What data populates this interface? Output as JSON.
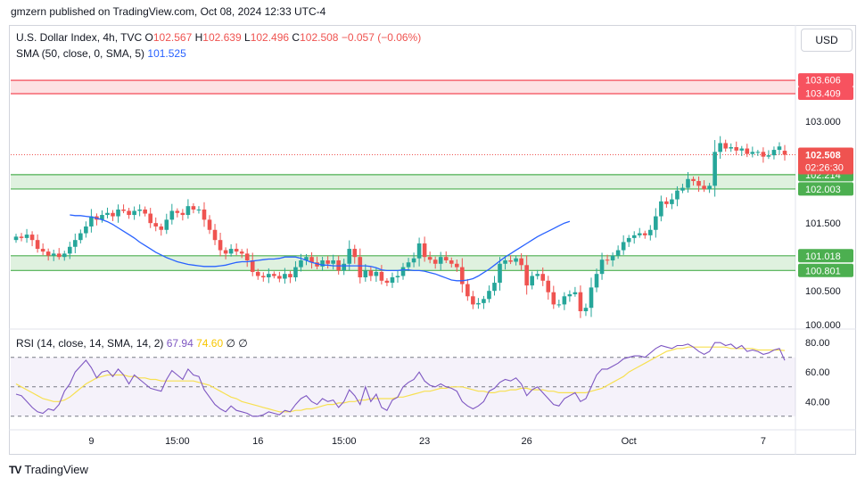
{
  "header": {
    "publisher": "gmzern published on TradingView.com, Oct 08, 2024 12:33 UTC-4"
  },
  "legend": {
    "symbol": "U.S. Dollar Index, 4h, TVC",
    "o_label": "O",
    "o": "102.567",
    "h_label": "H",
    "h": "102.639",
    "l_label": "L",
    "l": "102.496",
    "c_label": "C",
    "c": "102.508",
    "change": "−0.057 (−0.06%)",
    "sma_label": "SMA (50, close, 0, SMA, 5)",
    "sma_value": "101.525",
    "rsi_label": "RSI (14, close, 14, SMA, 14, 2)",
    "rsi_value": "67.94",
    "rsi_ma": "74.60",
    "rsi_extra": "∅ ∅"
  },
  "currency_button": "USD",
  "price_badges": {
    "last": "102.508",
    "countdown": "02:26:30",
    "zone_top_hi": "103.606",
    "zone_top_lo": "103.409",
    "zone_mid_hi": "102.214",
    "zone_mid_lo": "102.003",
    "zone_low_hi": "101.018",
    "zone_low_lo": "100.801"
  },
  "footer": {
    "brand": "TradingView",
    "logo": "TV"
  },
  "colors": {
    "up": "#26a69a",
    "down": "#ef5350",
    "sma": "#2962ff",
    "rsi": "#7e57c2",
    "rsi_ma": "#f7e050",
    "resistance": "#f23645",
    "support": "#4caf50"
  },
  "chart_data": [
    {
      "type": "candlestick",
      "title": "U.S. Dollar Index, 4h, TVC",
      "ylim": [
        99.95,
        103.87
      ],
      "yticks": [
        "103.000",
        "102.500",
        "101.500",
        "100.500",
        "100.000"
      ],
      "xticks": [
        {
          "label": "9",
          "i": 14
        },
        {
          "label": "15:00",
          "i": 30
        },
        {
          "label": "16",
          "i": 45
        },
        {
          "label": "15:00",
          "i": 61
        },
        {
          "label": "23",
          "i": 76
        },
        {
          "label": "26",
          "i": 95
        },
        {
          "label": "Oct",
          "i": 114
        },
        {
          "label": "7",
          "i": 139
        }
      ],
      "zones": [
        {
          "name": "resistance",
          "low": 103.409,
          "high": 103.606
        },
        {
          "name": "support",
          "low": 102.003,
          "high": 102.214
        },
        {
          "name": "support",
          "low": 100.801,
          "high": 101.018
        }
      ],
      "close": [
        101.3,
        101.28,
        101.33,
        101.25,
        101.12,
        101.08,
        101.02,
        101.05,
        101.0,
        101.05,
        101.15,
        101.25,
        101.35,
        101.45,
        101.6,
        101.55,
        101.62,
        101.65,
        101.6,
        101.7,
        101.68,
        101.62,
        101.68,
        101.7,
        101.64,
        101.5,
        101.45,
        101.4,
        101.55,
        101.68,
        101.65,
        101.62,
        101.75,
        101.7,
        101.7,
        101.55,
        101.4,
        101.25,
        101.1,
        101.05,
        101.12,
        101.08,
        101.05,
        100.95,
        100.78,
        100.72,
        100.7,
        100.75,
        100.72,
        100.68,
        100.75,
        100.7,
        100.85,
        100.95,
        101.0,
        100.92,
        100.86,
        100.95,
        100.9,
        100.95,
        100.8,
        100.9,
        101.12,
        101.0,
        100.7,
        100.8,
        100.72,
        100.78,
        100.65,
        100.62,
        100.7,
        100.72,
        100.85,
        100.92,
        100.98,
        101.2,
        101.0,
        100.96,
        100.9,
        101.0,
        100.95,
        100.9,
        100.85,
        100.6,
        100.42,
        100.3,
        100.32,
        100.38,
        100.5,
        100.62,
        100.9,
        100.95,
        100.93,
        100.98,
        100.88,
        100.58,
        100.72,
        100.75,
        100.65,
        100.48,
        100.3,
        100.3,
        100.42,
        100.45,
        100.48,
        100.2,
        100.25,
        100.55,
        100.75,
        100.96,
        100.95,
        101.02,
        101.1,
        101.22,
        101.28,
        101.32,
        101.35,
        101.32,
        101.4,
        101.6,
        101.82,
        101.78,
        101.85,
        101.98,
        102.02,
        102.15,
        102.12,
        102.05,
        102.0,
        102.05,
        102.55,
        102.68,
        102.6,
        102.62,
        102.57,
        102.6,
        102.52,
        102.55,
        102.55,
        102.48,
        102.5,
        102.58,
        102.63,
        102.508
      ],
      "open": [
        101.25,
        101.3,
        101.28,
        101.33,
        101.25,
        101.12,
        101.08,
        101.02,
        101.05,
        101.0,
        101.05,
        101.15,
        101.25,
        101.35,
        101.45,
        101.6,
        101.55,
        101.62,
        101.65,
        101.6,
        101.7,
        101.68,
        101.62,
        101.68,
        101.7,
        101.64,
        101.5,
        101.45,
        101.4,
        101.55,
        101.68,
        101.65,
        101.62,
        101.75,
        101.7,
        101.7,
        101.55,
        101.4,
        101.25,
        101.1,
        101.05,
        101.12,
        101.08,
        101.05,
        100.95,
        100.78,
        100.72,
        100.7,
        100.75,
        100.72,
        100.68,
        100.75,
        100.7,
        100.85,
        100.95,
        101.0,
        100.92,
        100.86,
        100.95,
        100.9,
        100.95,
        100.8,
        100.9,
        101.12,
        101.0,
        100.7,
        100.8,
        100.72,
        100.78,
        100.65,
        100.62,
        100.7,
        100.72,
        100.85,
        100.92,
        100.98,
        101.2,
        101.0,
        100.96,
        100.9,
        101.0,
        100.95,
        100.9,
        100.85,
        100.6,
        100.42,
        100.3,
        100.32,
        100.38,
        100.5,
        100.62,
        100.9,
        100.95,
        100.93,
        100.98,
        100.88,
        100.58,
        100.72,
        100.75,
        100.65,
        100.48,
        100.3,
        100.3,
        100.42,
        100.45,
        100.48,
        100.2,
        100.25,
        100.55,
        100.75,
        100.96,
        100.95,
        101.02,
        101.1,
        101.22,
        101.28,
        101.32,
        101.35,
        101.32,
        101.4,
        101.6,
        101.82,
        101.78,
        101.85,
        101.98,
        102.02,
        102.15,
        102.12,
        102.05,
        102.0,
        102.05,
        102.55,
        102.68,
        102.6,
        102.62,
        102.57,
        102.6,
        102.52,
        102.55,
        102.55,
        102.48,
        102.5,
        102.58,
        102.567
      ],
      "sma_start_index": 10,
      "sma": [
        101.62,
        101.61,
        101.61,
        101.6,
        101.59,
        101.57,
        101.55,
        101.52,
        101.48,
        101.43,
        101.38,
        101.33,
        101.28,
        101.22,
        101.17,
        101.12,
        101.07,
        101.03,
        100.99,
        100.96,
        100.93,
        100.91,
        100.89,
        100.88,
        100.87,
        100.86,
        100.86,
        100.86,
        100.87,
        100.88,
        100.9,
        100.92,
        100.93,
        100.93,
        100.94,
        100.95,
        100.96,
        100.97,
        100.97,
        100.98,
        101.0,
        101.0,
        101.0,
        100.98,
        100.95,
        100.92,
        100.9,
        100.88,
        100.88,
        100.87,
        100.87,
        100.87,
        100.87,
        100.87,
        100.87,
        100.87,
        100.86,
        100.84,
        100.81,
        100.8,
        100.8,
        100.8,
        100.81,
        100.81,
        100.8,
        100.8,
        100.79,
        100.77,
        100.75,
        100.72,
        100.69,
        100.66,
        100.65,
        100.65,
        100.66,
        100.68,
        100.72,
        100.77,
        100.82,
        100.88,
        100.94,
        101.0,
        101.05,
        101.1,
        101.15,
        101.2,
        101.25,
        101.3,
        101.34,
        101.38,
        101.42,
        101.46,
        101.5,
        101.525
      ]
    },
    {
      "type": "line",
      "title": "RSI (14, close, 14, SMA, 14, 2)",
      "ylim": [
        22,
        88
      ],
      "yticks": [
        "80.00",
        "60.00",
        "40.00"
      ],
      "bands": {
        "upper": 70,
        "middle": 50,
        "lower": 30
      },
      "series": [
        {
          "name": "RSI",
          "values": [
            45,
            44,
            40,
            36,
            33,
            32,
            35,
            34,
            38,
            47,
            52,
            60,
            64,
            68,
            63,
            56,
            60,
            61,
            57,
            62,
            58,
            52,
            58,
            55,
            52,
            49,
            48,
            47,
            55,
            61,
            58,
            55,
            62,
            58,
            57,
            48,
            43,
            38,
            35,
            33,
            37,
            34,
            33,
            32,
            30,
            30,
            31,
            33,
            32,
            31,
            34,
            33,
            38,
            42,
            44,
            40,
            38,
            42,
            40,
            41,
            36,
            40,
            48,
            44,
            38,
            50,
            40,
            45,
            36,
            34,
            41,
            43,
            50,
            53,
            55,
            60,
            54,
            51,
            50,
            52,
            50,
            49,
            47,
            40,
            37,
            35,
            37,
            40,
            47,
            49,
            53,
            55,
            54,
            56,
            52,
            44,
            48,
            50,
            46,
            42,
            38,
            37,
            42,
            44,
            46,
            40,
            42,
            50,
            58,
            62,
            62,
            64,
            66,
            69,
            70,
            71,
            71,
            70,
            73,
            76,
            78,
            77,
            76,
            78,
            78,
            79,
            77,
            74,
            72,
            74,
            80,
            80,
            78,
            79,
            76,
            78,
            74,
            75,
            74,
            72,
            73,
            75,
            76,
            67.94
          ]
        },
        {
          "name": "MA",
          "values": [
            52,
            50,
            48,
            46,
            44,
            42,
            41,
            40,
            40,
            41,
            43,
            46,
            49,
            52,
            54,
            56,
            57,
            58,
            58,
            58,
            58,
            57,
            57,
            56,
            56,
            55,
            55,
            54,
            54,
            54,
            54,
            54,
            54,
            54,
            53,
            52,
            51,
            49,
            47,
            45,
            43,
            42,
            40,
            39,
            38,
            37,
            36,
            35,
            34,
            33,
            33,
            33,
            34,
            34,
            35,
            35,
            36,
            37,
            38,
            38,
            39,
            39,
            40,
            40,
            41,
            41,
            42,
            42,
            42,
            42,
            42,
            43,
            43,
            44,
            45,
            46,
            47,
            47,
            48,
            49,
            49,
            50,
            50,
            50,
            49,
            48,
            47,
            47,
            46,
            46,
            47,
            47,
            48,
            48,
            49,
            49,
            48,
            48,
            48,
            47,
            47,
            46,
            46,
            46,
            46,
            46,
            46,
            47,
            48,
            49,
            51,
            53,
            55,
            57,
            60,
            62,
            64,
            66,
            68,
            70,
            72,
            74,
            75,
            76,
            76,
            77,
            77,
            77,
            77,
            77,
            77,
            77,
            77,
            76,
            76,
            76,
            76,
            76,
            75,
            75,
            75,
            75,
            75,
            74.6
          ]
        }
      ]
    }
  ]
}
